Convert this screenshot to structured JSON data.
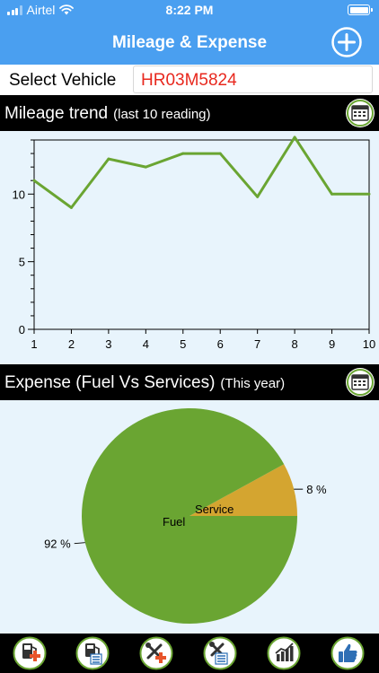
{
  "status_bar": {
    "carrier": "Airtel",
    "time": "8:22 PM"
  },
  "nav": {
    "title": "Mileage & Expense",
    "add_icon": "plus-circle-icon"
  },
  "vehicle": {
    "label": "Select Vehicle",
    "value": "HR03M5824"
  },
  "mileage_section": {
    "title": "Mileage trend",
    "subtitle": "(last 10 reading)",
    "icon": "calendar-icon"
  },
  "expense_section": {
    "title": "Expense (Fuel Vs Services)",
    "subtitle": "(This year)",
    "icon": "calendar-icon"
  },
  "colors": {
    "accent": "#4a9ff0",
    "series": "#6aa532",
    "service": "#d4a530",
    "vehicle_text": "#e8281e"
  },
  "chart_data": [
    {
      "type": "line",
      "x": [
        1,
        2,
        3,
        4,
        5,
        6,
        7,
        8,
        9,
        10
      ],
      "values": [
        11,
        9,
        12.6,
        12,
        13,
        13,
        9.8,
        14.2,
        10,
        10
      ],
      "xlim": [
        1,
        10
      ],
      "ylim": [
        0,
        14
      ],
      "yticks": [
        0,
        5,
        10
      ],
      "xticks": [
        "1",
        "2",
        "3",
        "4",
        "5",
        "6",
        "7",
        "8",
        "9",
        "10"
      ],
      "grid": false
    },
    {
      "type": "pie",
      "slices": [
        {
          "label": "Fuel",
          "value": 92,
          "pct_label": "92 %"
        },
        {
          "label": "Service",
          "value": 8,
          "pct_label": "8 %"
        }
      ]
    }
  ],
  "tabs": [
    {
      "name": "add-fuel-tab",
      "icon": "fuel-add-icon"
    },
    {
      "name": "fuel-list-tab",
      "icon": "fuel-list-icon"
    },
    {
      "name": "add-service-tab",
      "icon": "service-add-icon"
    },
    {
      "name": "service-list-tab",
      "icon": "service-list-icon"
    },
    {
      "name": "reports-tab",
      "icon": "chart-icon"
    },
    {
      "name": "feedback-tab",
      "icon": "thumbs-up-icon"
    }
  ]
}
